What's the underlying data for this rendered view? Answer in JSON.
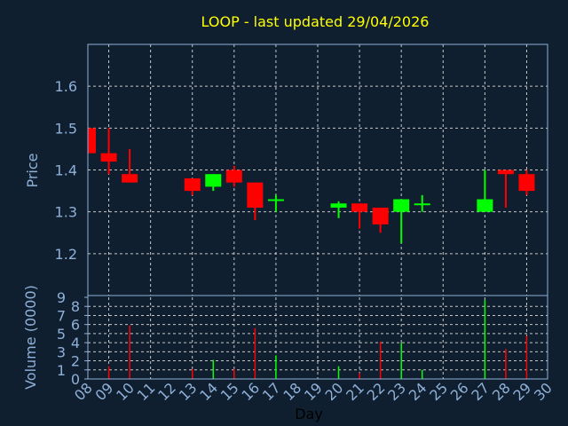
{
  "chart_data": [
    {
      "type": "candlestick",
      "title": "LOOP - last updated 29/04/2026",
      "ylabel": "Price",
      "ylim": [
        1.1,
        1.7
      ],
      "yticks": [
        "1.2",
        "1.3",
        "1.4",
        "1.5",
        "1.6"
      ],
      "grid": true,
      "colors": {
        "up": "#00ff00",
        "down": "#ff0000"
      },
      "series": [
        {
          "day": 8,
          "open": 1.5,
          "high": 1.5,
          "low": 1.44,
          "close": 1.44
        },
        {
          "day": 9,
          "open": 1.44,
          "high": 1.5,
          "low": 1.39,
          "close": 1.42
        },
        {
          "day": 10,
          "open": 1.39,
          "high": 1.45,
          "low": 1.37,
          "close": 1.37
        },
        {
          "day": 13,
          "open": 1.38,
          "high": 1.38,
          "low": 1.34,
          "close": 1.35
        },
        {
          "day": 14,
          "open": 1.36,
          "high": 1.39,
          "low": 1.35,
          "close": 1.39
        },
        {
          "day": 15,
          "open": 1.4,
          "high": 1.41,
          "low": 1.36,
          "close": 1.37
        },
        {
          "day": 16,
          "open": 1.37,
          "high": 1.37,
          "low": 1.28,
          "close": 1.31
        },
        {
          "day": 17,
          "open": 1.33,
          "high": 1.34,
          "low": 1.3,
          "close": 1.33
        },
        {
          "day": 20,
          "open": 1.31,
          "high": 1.325,
          "low": 1.285,
          "close": 1.32
        },
        {
          "day": 21,
          "open": 1.32,
          "high": 1.32,
          "low": 1.26,
          "close": 1.3
        },
        {
          "day": 22,
          "open": 1.31,
          "high": 1.31,
          "low": 1.25,
          "close": 1.27
        },
        {
          "day": 23,
          "open": 1.3,
          "high": 1.33,
          "low": 1.225,
          "close": 1.33
        },
        {
          "day": 24,
          "open": 1.32,
          "high": 1.34,
          "low": 1.3,
          "close": 1.32
        },
        {
          "day": 27,
          "open": 1.3,
          "high": 1.4,
          "low": 1.3,
          "close": 1.33
        },
        {
          "day": 28,
          "open": 1.4,
          "high": 1.4,
          "low": 1.31,
          "close": 1.39
        },
        {
          "day": 29,
          "open": 1.39,
          "high": 1.4,
          "low": 1.34,
          "close": 1.35
        }
      ]
    },
    {
      "type": "bar",
      "ylabel": "Volume (0000)",
      "xlabel": "Day",
      "ylim": [
        0,
        9
      ],
      "yticks": [
        "0",
        "1",
        "2",
        "3",
        "4",
        "5",
        "6",
        "7",
        "8",
        "9"
      ],
      "xlim": [
        8,
        30
      ],
      "xticks": [
        "08",
        "09",
        "10",
        "11",
        "12",
        "13",
        "14",
        "15",
        "16",
        "17",
        "18",
        "19",
        "20",
        "21",
        "22",
        "23",
        "24",
        "25",
        "26",
        "27",
        "28",
        "29",
        "30"
      ],
      "grid": true,
      "series": [
        {
          "day": 9,
          "volume": 1.4,
          "dir": "down"
        },
        {
          "day": 10,
          "volume": 5.9,
          "dir": "down"
        },
        {
          "day": 13,
          "volume": 1.1,
          "dir": "down"
        },
        {
          "day": 14,
          "volume": 2.1,
          "dir": "up"
        },
        {
          "day": 15,
          "volume": 1.1,
          "dir": "down"
        },
        {
          "day": 16,
          "volume": 5.6,
          "dir": "down"
        },
        {
          "day": 17,
          "volume": 2.6,
          "dir": "up"
        },
        {
          "day": 20,
          "volume": 1.4,
          "dir": "up"
        },
        {
          "day": 21,
          "volume": 0.65,
          "dir": "down"
        },
        {
          "day": 22,
          "volume": 4.1,
          "dir": "down"
        },
        {
          "day": 23,
          "volume": 4.0,
          "dir": "up"
        },
        {
          "day": 24,
          "volume": 1.0,
          "dir": "up"
        },
        {
          "day": 27,
          "volume": 8.7,
          "dir": "up"
        },
        {
          "day": 28,
          "volume": 3.3,
          "dir": "down"
        },
        {
          "day": 29,
          "volume": 4.75,
          "dir": "down"
        }
      ]
    }
  ]
}
